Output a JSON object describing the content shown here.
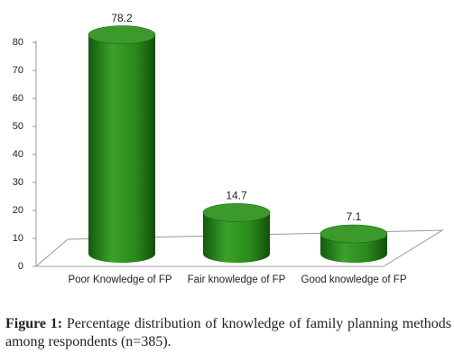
{
  "chart_data": {
    "type": "bar",
    "categories": [
      "Poor Knowledge of FP",
      "Fair knowledge of FP",
      "Good knowledge of FP"
    ],
    "values": [
      78.2,
      14.7,
      7.1
    ],
    "color": "#2e8b1e",
    "ylim": [
      0,
      80
    ],
    "yticks": [
      0,
      10,
      20,
      30,
      40,
      50,
      60,
      70,
      80
    ],
    "caption_label": "Figure 1:",
    "caption": "Percentage distribution of knowledge of family planning methods among respondents (n=385)."
  }
}
